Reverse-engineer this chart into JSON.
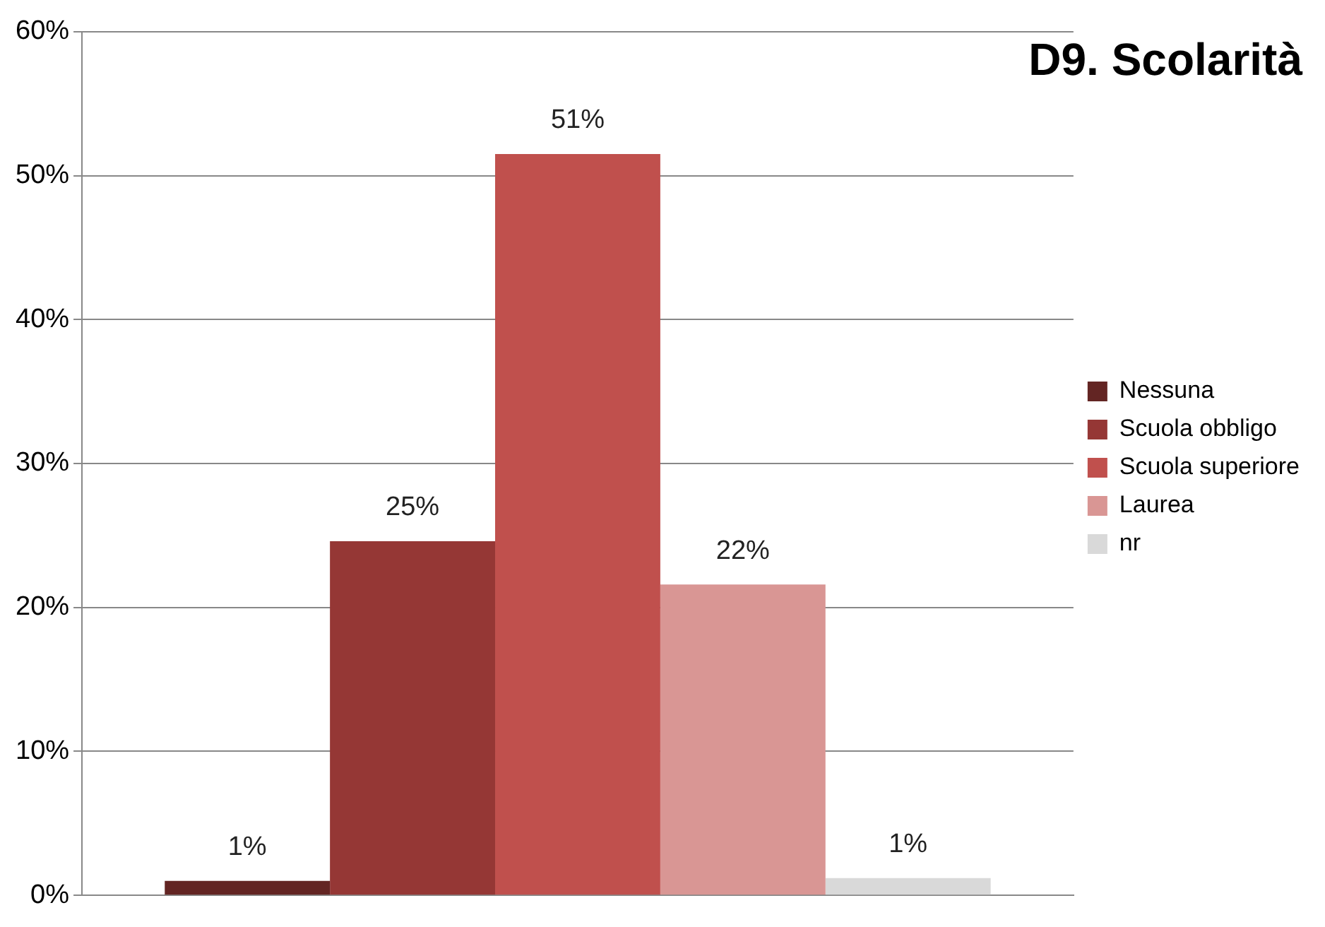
{
  "chart_data": {
    "type": "bar",
    "title": "D9. Scolarità",
    "categories": [
      null
    ],
    "series": [
      {
        "name": "Nessuna",
        "color": "#632523",
        "values": [
          1.0
        ],
        "value_labels": [
          "1%"
        ]
      },
      {
        "name": "Scuola obbligo",
        "color": "#953735",
        "values": [
          24.6
        ],
        "value_labels": [
          "25%"
        ]
      },
      {
        "name": "Scuola superiore",
        "color": "#c0504d",
        "values": [
          51.5
        ],
        "value_labels": [
          "51%"
        ]
      },
      {
        "name": "Laurea",
        "color": "#d99694",
        "values": [
          21.6
        ],
        "value_labels": [
          "22%"
        ]
      },
      {
        "name": "nr",
        "color": "#d9d9d9",
        "values": [
          1.2
        ],
        "value_labels": [
          "1%"
        ]
      }
    ],
    "ylim": [
      0,
      60
    ],
    "yticks": [
      {
        "value": 0,
        "label": "0%"
      },
      {
        "value": 10,
        "label": "10%"
      },
      {
        "value": 20,
        "label": "20%"
      },
      {
        "value": 30,
        "label": "30%"
      },
      {
        "value": 40,
        "label": "40%"
      },
      {
        "value": 50,
        "label": "50%"
      },
      {
        "value": 60,
        "label": "60%"
      }
    ],
    "grid": "y",
    "legend": "right",
    "tick_labels": "y"
  }
}
